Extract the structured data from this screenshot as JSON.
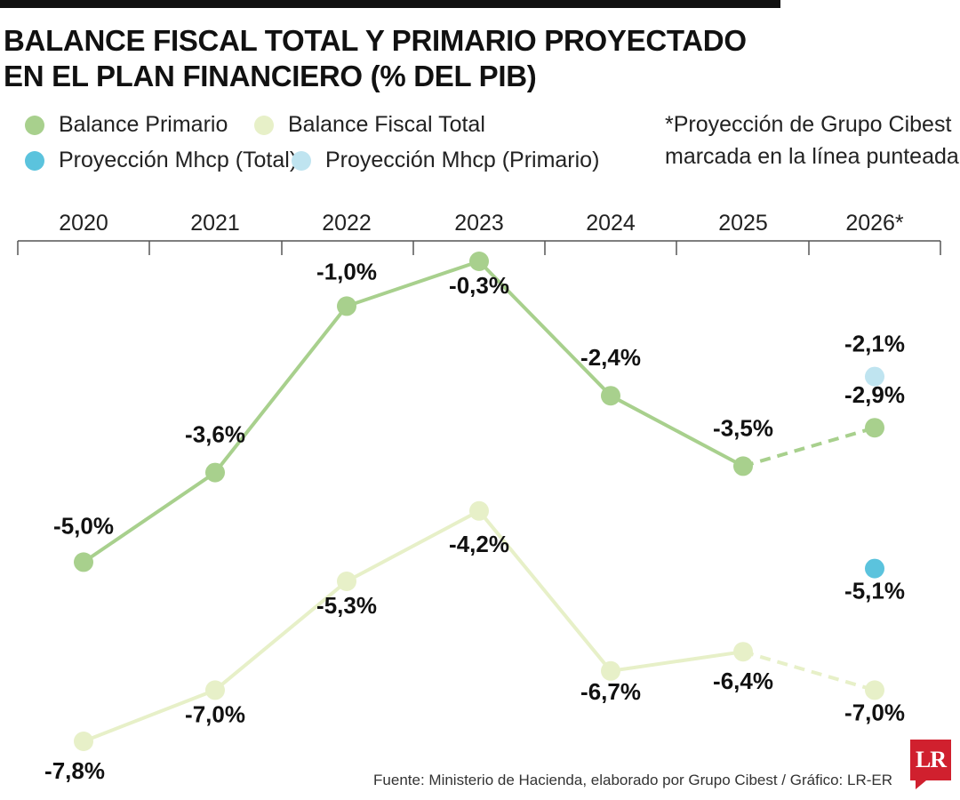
{
  "title_lines": [
    "BALANCE FISCAL TOTAL Y PRIMARIO PROYECTADO",
    "EN EL PLAN FINANCIERO (% DEL PIB)"
  ],
  "legend": [
    {
      "label": "Balance Primario",
      "color": "#a8d08d"
    },
    {
      "label": "Balance Fiscal Total",
      "color": "#e7f0c8"
    },
    {
      "label": "Proyección Mhcp (Total)",
      "color": "#5bc3dd"
    },
    {
      "label": "Proyección Mhcp (Primario)",
      "color": "#bfe4f0"
    }
  ],
  "note_lines": [
    "*Proyección de Grupo Cibest",
    "marcada en la línea punteada"
  ],
  "source": "Fuente: Ministerio de Hacienda, elaborado por Grupo Cibest / Gráfico: LR-ER",
  "logo_text": "LR",
  "chart_data": {
    "type": "line",
    "categories": [
      "2020",
      "2021",
      "2022",
      "2023",
      "2024",
      "2025",
      "2026*"
    ],
    "series": [
      {
        "name": "Balance Primario",
        "color": "#a8d08d",
        "values": [
          -5.0,
          -3.6,
          -1.0,
          -0.3,
          -2.4,
          -3.5,
          -2.9
        ],
        "labels": [
          "-5,0%",
          "-3,6%",
          "-1,0%",
          "-0,3%",
          "-2,4%",
          "-3,5%",
          "-2,9%"
        ],
        "dashed_from_index": 5
      },
      {
        "name": "Balance Fiscal Total",
        "color": "#e7f0c8",
        "values": [
          -7.8,
          -7.0,
          -5.3,
          -4.2,
          -6.7,
          -6.4,
          -7.0
        ],
        "labels": [
          "-7,8%",
          "-7,0%",
          "-5,3%",
          "-4,2%",
          "-6,7%",
          "-6,4%",
          "-7,0%"
        ],
        "dashed_from_index": 5
      },
      {
        "name": "Proyección Mhcp (Total)",
        "color": "#5bc3dd",
        "points": [
          {
            "category": "2026*",
            "value": -5.1,
            "label": "-5,1%"
          }
        ]
      },
      {
        "name": "Proyección Mhcp (Primario)",
        "color": "#bfe4f0",
        "points": [
          {
            "category": "2026*",
            "value": -2.1,
            "label": "-2,1%"
          }
        ]
      }
    ],
    "grid": false,
    "legend_position": "top"
  }
}
